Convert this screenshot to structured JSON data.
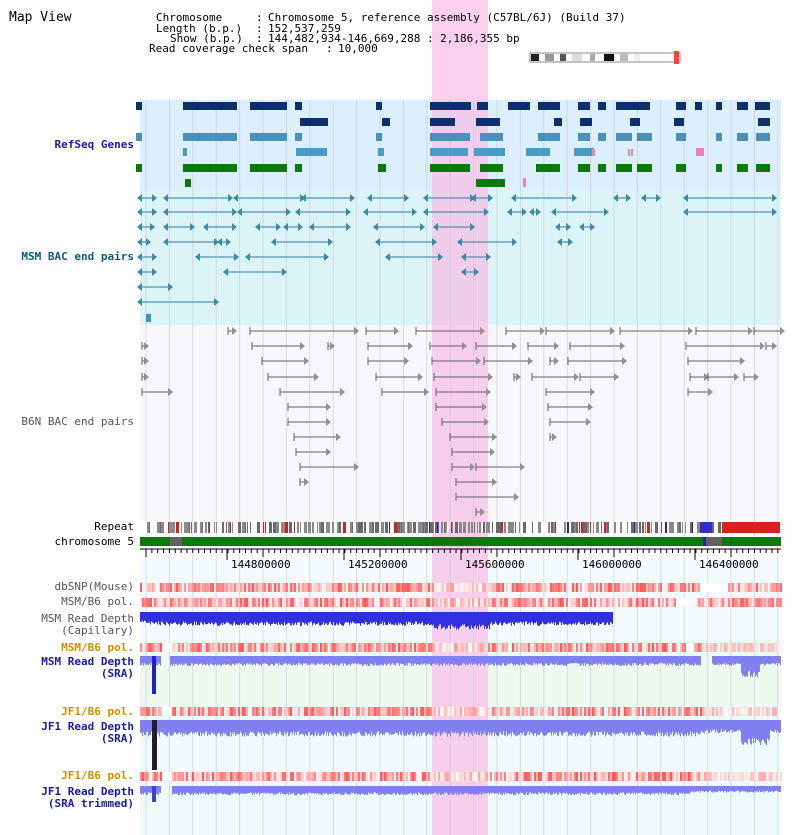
{
  "page": {
    "title": "Map View"
  },
  "header": {
    "chromosome_label": "Chromosome",
    "chromosome_value": "Chromosome 5, reference assembly (C57BL/6J) (Build 37)",
    "length_label": "Length (b.p.)",
    "length_value": "152,537,259",
    "show_label": "Show (b.p.)",
    "show_value": "144,482,934-146,669,288 : 2,186,355 bp",
    "coverage_label": "Read coverage check span",
    "coverage_value": "10,000"
  },
  "tracks": {
    "refseq": "RefSeq Genes",
    "msm_bac": "MSM BAC end pairs",
    "b6n_bac": "B6N BAC end pairs",
    "repeat": "Repeat",
    "chromosome": "chromosome 5",
    "dbsnp": "dbSNP(Mouse)",
    "msm_b6_pol_1": "MSM/B6 pol.",
    "msm_depth_cap_1": "MSM Read Depth",
    "msm_depth_cap_2": "(Capillary)",
    "msm_b6_pol_2": "MSM/B6 pol.",
    "msm_depth_sra_1": "MSM Read Depth",
    "msm_depth_sra_2": "(SRA)",
    "jf1_b6_pol_1": "JF1/B6 pol.",
    "jf1_depth_sra_1": "JF1 Read Depth",
    "jf1_depth_sra_2": "(SRA)",
    "jf1_b6_pol_2": "JF1/B6 pol.",
    "jf1_depth_trim_1": "JF1 Read Depth",
    "jf1_depth_trim_2": "(SRA trimmed)"
  },
  "ruler": {
    "ticks": [
      "144800000",
      "145200000",
      "145600000",
      "146000000",
      "146400000"
    ]
  },
  "colors": {
    "refseq_dark": "#0d2f6b",
    "refseq_mid": "#4a90b8",
    "refseq_light": "#4a9cc8",
    "refseq_green": "#0a7a0a",
    "refseq_pink": "#f080b8",
    "highlight": "#f8c0e8",
    "depth_blue": "#3030e0",
    "depth_light": "#8080f0",
    "pol_red": "#e83030",
    "chromosome_green": "#0a7a0a",
    "orange_label": "#d98c00"
  }
}
